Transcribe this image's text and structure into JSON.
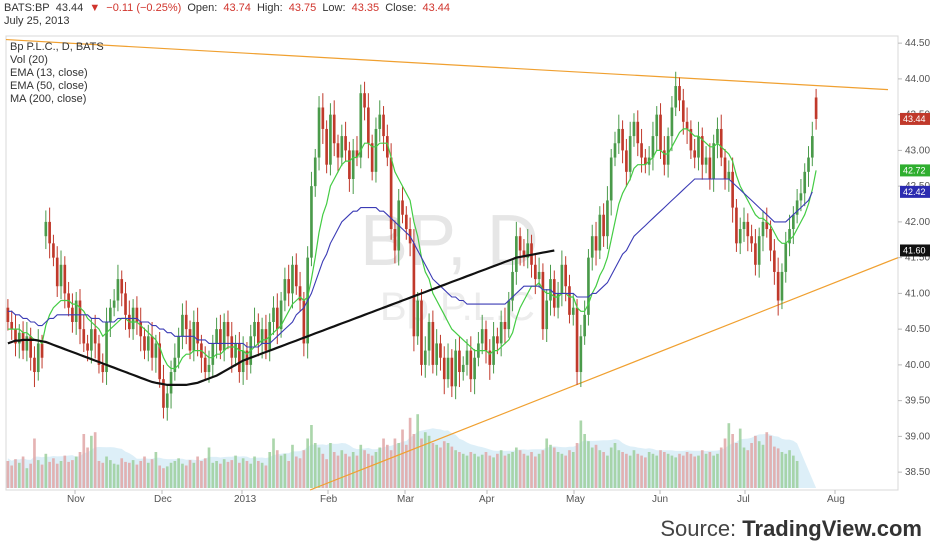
{
  "header": {
    "symbol": "BATS:BP",
    "last": "43.44",
    "arrow": "▼",
    "change": "−0.11 (−0.25%)",
    "open_label": "Open:",
    "open": "43.74",
    "high_label": "High:",
    "high": "43.75",
    "low_label": "Low:",
    "low": "43.35",
    "close_label": "Close:",
    "close": "43.44",
    "date": "July 25, 2013"
  },
  "source": {
    "prefix": "Source: ",
    "brand": "TradingView.com"
  },
  "colors": {
    "up": "#4a9a4a",
    "down": "#c0392b",
    "ema13": "#44cc44",
    "ema50": "#3b3bb5",
    "ma200": "#111111",
    "trend": "#f0a030",
    "vol_up": "#9ccf9c",
    "vol_down": "#e0a6a6",
    "vol_area": "#cfe8f5"
  },
  "chart_data": {
    "type": "candlestick",
    "title": "Bp P.L.C., D, BATS",
    "legend": [
      "Bp P.L.C., D, BATS",
      "Vol (20)",
      "EMA (13, close)",
      "EMA (50, close)",
      "MA (200, close)"
    ],
    "watermark": "BP, D",
    "watermark_sub": "Bp P.L.C",
    "ylim": [
      38.25,
      44.6
    ],
    "y_ticks": [
      "44.50",
      "44.00",
      "43.50",
      "43.00",
      "42.50",
      "42.00",
      "41.50",
      "41.00",
      "40.50",
      "40.00",
      "39.50",
      "39.00",
      "38.50"
    ],
    "x_ticks": [
      "Nov",
      "Dec",
      "2013",
      "Feb",
      "Mar",
      "Apr",
      "May",
      "Jun",
      "Jul",
      "Aug"
    ],
    "badges": [
      {
        "label": "43.44",
        "value": 43.44,
        "color": "#c0392b"
      },
      {
        "label": "42.72",
        "value": 42.72,
        "color": "#2fae2f"
      },
      {
        "label": "42.42",
        "value": 42.42,
        "color": "#2b2bb0"
      },
      {
        "label": "41.60",
        "value": 41.6,
        "color": "#111111"
      }
    ],
    "closes": [
      40.6,
      40.5,
      40.3,
      40.45,
      40.2,
      40.4,
      40.1,
      39.9,
      40.3,
      40.1,
      42.0,
      41.7,
      41.5,
      41.1,
      41.4,
      41.0,
      40.8,
      40.6,
      40.9,
      40.5,
      40.3,
      40.2,
      40.5,
      40.3,
      40.0,
      39.9,
      40.6,
      40.8,
      40.9,
      41.2,
      41.0,
      40.7,
      40.5,
      40.8,
      40.6,
      40.4,
      40.2,
      40.4,
      40.1,
      40.3,
      39.8,
      39.4,
      39.6,
      39.9,
      40.1,
      40.4,
      40.7,
      40.5,
      40.2,
      40.6,
      40.3,
      40.1,
      39.9,
      40.0,
      40.3,
      40.5,
      40.2,
      40.6,
      40.4,
      40.1,
      40.3,
      39.9,
      40.2,
      40.0,
      40.4,
      40.6,
      40.3,
      40.5,
      40.2,
      40.6,
      40.8,
      40.5,
      40.9,
      41.2,
      41.0,
      41.4,
      41.1,
      40.9,
      40.3,
      41.5,
      42.5,
      42.9,
      43.6,
      43.3,
      42.8,
      43.5,
      43.1,
      42.9,
      43.2,
      43.0,
      42.6,
      43.0,
      42.9,
      43.8,
      43.6,
      43.1,
      42.7,
      43.3,
      43.5,
      43.2,
      42.9,
      41.9,
      41.6,
      42.3,
      42.1,
      41.9,
      41.7,
      40.4,
      40.9,
      40.0,
      40.2,
      40.6,
      40.0,
      40.3,
      40.1,
      39.8,
      40.1,
      39.7,
      40.2,
      39.9,
      40.0,
      40.2,
      39.8,
      40.1,
      40.3,
      40.5,
      40.2,
      40.0,
      40.4,
      40.3,
      40.6,
      40.5,
      40.9,
      41.3,
      41.8,
      41.6,
      41.5,
      41.7,
      41.4,
      41.2,
      41.3,
      40.5,
      40.9,
      41.2,
      40.8,
      41.0,
      41.4,
      41.1,
      40.7,
      40.8,
      39.9,
      40.4,
      40.7,
      41.5,
      41.8,
      41.6,
      42.1,
      41.8,
      42.3,
      42.9,
      43.1,
      43.3,
      43.0,
      42.7,
      43.2,
      43.4,
      43.1,
      42.9,
      42.8,
      42.9,
      43.2,
      43.5,
      43.0,
      42.8,
      43.2,
      43.6,
      43.9,
      43.7,
      43.4,
      43.3,
      43.0,
      42.9,
      43.2,
      42.8,
      42.9,
      42.6,
      43.1,
      43.3,
      42.9,
      42.6,
      42.7,
      42.2,
      41.7,
      41.9,
      42.0,
      41.8,
      41.7,
      41.4,
      41.8,
      42.0,
      41.9,
      41.6,
      41.3,
      40.9,
      41.3,
      41.7,
      41.9,
      42.1,
      42.3,
      42.4,
      42.7,
      42.9,
      43.2,
      43.44
    ],
    "opens": [
      40.8,
      40.6,
      40.5,
      40.3,
      40.45,
      40.2,
      40.4,
      40.1,
      39.9,
      40.3,
      41.8,
      42.0,
      41.7,
      41.5,
      41.1,
      41.4,
      41.0,
      40.8,
      40.6,
      40.9,
      40.5,
      40.3,
      40.2,
      40.5,
      40.3,
      40.0,
      39.9,
      40.6,
      40.8,
      40.9,
      41.2,
      41.0,
      40.7,
      40.5,
      40.8,
      40.6,
      40.4,
      40.2,
      40.4,
      40.1,
      40.3,
      39.8,
      39.4,
      39.6,
      39.9,
      40.1,
      40.4,
      40.7,
      40.5,
      40.2,
      40.6,
      40.3,
      40.1,
      39.9,
      40.0,
      40.3,
      40.5,
      40.2,
      40.6,
      40.4,
      40.1,
      40.3,
      39.9,
      40.2,
      40.0,
      40.4,
      40.6,
      40.3,
      40.5,
      40.2,
      40.6,
      40.8,
      40.5,
      40.9,
      41.2,
      41.0,
      41.4,
      41.1,
      40.9,
      40.3,
      41.5,
      42.5,
      42.9,
      43.6,
      43.3,
      42.8,
      43.5,
      43.1,
      42.9,
      43.2,
      43.0,
      42.6,
      43.0,
      42.9,
      43.8,
      43.6,
      43.1,
      42.7,
      43.3,
      43.5,
      43.2,
      42.9,
      41.9,
      41.6,
      42.3,
      42.1,
      41.9,
      41.7,
      40.4,
      40.9,
      40.0,
      40.2,
      40.6,
      40.0,
      40.3,
      40.1,
      39.8,
      40.1,
      39.7,
      40.2,
      39.9,
      40.0,
      40.2,
      39.8,
      40.1,
      40.3,
      40.5,
      40.2,
      40.0,
      40.4,
      40.3,
      40.6,
      40.5,
      40.9,
      41.3,
      41.8,
      41.6,
      41.5,
      41.7,
      41.4,
      41.2,
      41.3,
      40.5,
      40.9,
      41.2,
      40.8,
      41.0,
      41.4,
      41.1,
      40.7,
      40.8,
      39.9,
      40.4,
      40.7,
      41.5,
      41.8,
      41.6,
      42.1,
      41.8,
      42.3,
      42.9,
      43.1,
      43.3,
      43.0,
      42.7,
      43.2,
      43.4,
      43.1,
      42.9,
      42.8,
      42.9,
      43.2,
      43.5,
      43.0,
      42.8,
      43.2,
      43.6,
      43.9,
      43.7,
      43.4,
      43.3,
      43.0,
      42.9,
      43.2,
      42.8,
      42.9,
      42.6,
      43.1,
      43.3,
      42.9,
      42.6,
      42.7,
      42.2,
      41.7,
      41.9,
      42.0,
      41.8,
      41.7,
      41.4,
      41.8,
      42.0,
      41.9,
      41.6,
      41.3,
      40.9,
      41.3,
      41.7,
      41.9,
      42.1,
      42.3,
      42.4,
      42.7,
      42.9,
      43.74
    ],
    "ema13": [
      40.5,
      40.5,
      40.5,
      40.5,
      40.45,
      40.45,
      40.4,
      40.35,
      40.35,
      40.3,
      40.55,
      40.7,
      40.8,
      40.85,
      40.9,
      40.9,
      40.9,
      40.85,
      40.85,
      40.8,
      40.75,
      40.65,
      40.6,
      40.55,
      40.5,
      40.4,
      40.45,
      40.5,
      40.55,
      40.6,
      40.65,
      40.65,
      40.6,
      40.6,
      40.6,
      40.55,
      40.5,
      40.45,
      40.4,
      40.35,
      40.25,
      40.1,
      40.0,
      39.95,
      39.95,
      40.0,
      40.1,
      40.15,
      40.15,
      40.2,
      40.2,
      40.2,
      40.15,
      40.1,
      40.1,
      40.15,
      40.15,
      40.2,
      40.25,
      40.25,
      40.25,
      40.2,
      40.2,
      40.15,
      40.2,
      40.25,
      40.3,
      40.35,
      40.35,
      40.4,
      40.45,
      40.5,
      40.55,
      40.65,
      40.75,
      40.85,
      40.9,
      40.95,
      40.9,
      40.95,
      41.2,
      41.5,
      41.85,
      42.1,
      42.25,
      42.5,
      42.6,
      42.7,
      42.8,
      42.85,
      42.85,
      42.9,
      42.9,
      43.0,
      43.1,
      43.1,
      43.05,
      43.05,
      43.1,
      43.1,
      43.1,
      42.9,
      42.7,
      42.6,
      42.5,
      42.4,
      42.3,
      42.0,
      41.8,
      41.5,
      41.3,
      41.2,
      41.0,
      40.9,
      40.8,
      40.7,
      40.6,
      40.5,
      40.45,
      40.4,
      40.35,
      40.3,
      40.25,
      40.2,
      40.2,
      40.2,
      40.2,
      40.15,
      40.2,
      40.2,
      40.25,
      40.3,
      40.35,
      40.45,
      40.65,
      40.8,
      40.9,
      41.0,
      41.1,
      41.1,
      41.15,
      41.05,
      41.0,
      41.0,
      40.95,
      40.95,
      41.0,
      41.0,
      40.95,
      40.95,
      40.8,
      40.75,
      40.75,
      40.85,
      41.0,
      41.1,
      41.25,
      41.35,
      41.5,
      41.75,
      42.0,
      42.25,
      42.4,
      42.5,
      42.6,
      42.75,
      42.8,
      42.8,
      42.8,
      42.85,
      42.9,
      43.0,
      43.0,
      42.95,
      42.95,
      43.05,
      43.15,
      43.25,
      43.3,
      43.3,
      43.25,
      43.2,
      43.2,
      43.15,
      43.1,
      43.05,
      43.05,
      43.1,
      43.05,
      43.0,
      42.95,
      42.85,
      42.65,
      42.5,
      42.4,
      42.3,
      42.2,
      42.1,
      42.05,
      42.05,
      42.0,
      41.95,
      41.85,
      41.75,
      41.7,
      41.7,
      41.75,
      41.8,
      41.9,
      42.0,
      42.1,
      42.25,
      42.45,
      42.72
    ],
    "ema50": [
      40.75,
      40.75,
      40.7,
      40.7,
      40.65,
      40.65,
      40.6,
      40.6,
      40.55,
      40.55,
      40.6,
      40.65,
      40.65,
      40.7,
      40.7,
      40.7,
      40.7,
      40.7,
      40.7,
      40.7,
      40.7,
      40.7,
      40.65,
      40.65,
      40.65,
      40.6,
      40.6,
      40.6,
      40.6,
      40.65,
      40.65,
      40.65,
      40.65,
      40.65,
      40.65,
      40.6,
      40.6,
      40.6,
      40.55,
      40.55,
      40.5,
      40.5,
      40.45,
      40.45,
      40.4,
      40.4,
      40.4,
      40.4,
      40.4,
      40.4,
      40.35,
      40.35,
      40.35,
      40.3,
      40.3,
      40.3,
      40.3,
      40.3,
      40.3,
      40.3,
      40.3,
      40.3,
      40.3,
      40.25,
      40.25,
      40.25,
      40.25,
      40.3,
      40.3,
      40.3,
      40.35,
      40.4,
      40.45,
      40.5,
      40.55,
      40.6,
      40.7,
      40.75,
      40.8,
      40.9,
      41.0,
      41.15,
      41.3,
      41.45,
      41.55,
      41.7,
      41.8,
      41.9,
      42.0,
      42.05,
      42.1,
      42.15,
      42.15,
      42.2,
      42.2,
      42.2,
      42.2,
      42.2,
      42.15,
      42.15,
      42.1,
      42.05,
      42.0,
      41.95,
      41.9,
      41.85,
      41.8,
      41.7,
      41.6,
      41.5,
      41.4,
      41.3,
      41.2,
      41.15,
      41.1,
      41.05,
      41.0,
      40.95,
      40.95,
      40.9,
      40.9,
      40.85,
      40.85,
      40.85,
      40.85,
      40.85,
      40.85,
      40.85,
      40.85,
      40.85,
      40.85,
      40.85,
      40.9,
      40.95,
      41.0,
      41.05,
      41.1,
      41.1,
      41.1,
      41.1,
      41.1,
      41.05,
      41.05,
      41.05,
      41.0,
      41.0,
      41.0,
      41.0,
      41.0,
      41.0,
      40.95,
      40.95,
      40.95,
      40.95,
      41.0,
      41.0,
      41.05,
      41.1,
      41.15,
      41.25,
      41.35,
      41.45,
      41.55,
      41.6,
      41.7,
      41.8,
      41.85,
      41.9,
      41.95,
      42.0,
      42.05,
      42.1,
      42.15,
      42.2,
      42.25,
      42.3,
      42.35,
      42.4,
      42.45,
      42.5,
      42.55,
      42.6,
      42.6,
      42.6,
      42.6,
      42.6,
      42.6,
      42.6,
      42.6,
      42.6,
      42.6,
      42.55,
      42.5,
      42.45,
      42.4,
      42.35,
      42.3,
      42.25,
      42.2,
      42.15,
      42.1,
      42.05,
      42.0,
      42.0,
      42.0,
      42.0,
      42.05,
      42.1,
      42.15,
      42.2,
      42.25,
      42.3,
      42.42
    ],
    "ma200": [
      40.3,
      40.32,
      40.34,
      40.34,
      40.35,
      40.35,
      40.35,
      40.35,
      40.34,
      40.33,
      40.32,
      40.3,
      40.28,
      40.26,
      40.24,
      40.22,
      40.2,
      40.18,
      40.16,
      40.14,
      40.12,
      40.1,
      40.08,
      40.06,
      40.04,
      40.02,
      40.0,
      39.98,
      39.96,
      39.94,
      39.92,
      39.9,
      39.88,
      39.86,
      39.84,
      39.82,
      39.8,
      39.78,
      39.76,
      39.75,
      39.74,
      39.73,
      39.72,
      39.72,
      39.72,
      39.72,
      39.72,
      39.72,
      39.73,
      39.74,
      39.75,
      39.77,
      39.79,
      39.81,
      39.83,
      39.85,
      39.88,
      39.91,
      39.94,
      39.97,
      40.0,
      40.03,
      40.06,
      40.08,
      40.1,
      40.12,
      40.14,
      40.16,
      40.18,
      40.2,
      40.22,
      40.24,
      40.26,
      40.28,
      40.3,
      40.32,
      40.34,
      40.36,
      40.38,
      40.4,
      40.42,
      40.44,
      40.46,
      40.48,
      40.5,
      40.52,
      40.54,
      40.56,
      40.58,
      40.6,
      40.62,
      40.64,
      40.66,
      40.68,
      40.7,
      40.72,
      40.74,
      40.76,
      40.78,
      40.8,
      40.82,
      40.84,
      40.86,
      40.88,
      40.9,
      40.92,
      40.94,
      40.96,
      40.98,
      41.0,
      41.02,
      41.04,
      41.06,
      41.08,
      41.1,
      41.12,
      41.14,
      41.16,
      41.18,
      41.2,
      41.22,
      41.24,
      41.26,
      41.28,
      41.3,
      41.32,
      41.34,
      41.36,
      41.38,
      41.4,
      41.42,
      41.44,
      41.46,
      41.48,
      41.5,
      41.51,
      41.52,
      41.53,
      41.54,
      41.55,
      41.56,
      41.57,
      41.58,
      41.59,
      41.6
    ],
    "volume": [
      0.3,
      0.25,
      0.32,
      0.28,
      0.35,
      0.22,
      0.27,
      0.55,
      0.31,
      0.26,
      0.38,
      0.29,
      0.33,
      0.27,
      0.3,
      0.36,
      0.29,
      0.31,
      0.35,
      0.4,
      0.6,
      0.45,
      0.58,
      0.62,
      0.3,
      0.28,
      0.35,
      0.31,
      0.27,
      0.26,
      0.33,
      0.29,
      0.28,
      0.31,
      0.26,
      0.3,
      0.35,
      0.28,
      0.32,
      0.4,
      0.25,
      0.22,
      0.24,
      0.28,
      0.3,
      0.33,
      0.27,
      0.25,
      0.31,
      0.28,
      0.35,
      0.3,
      0.33,
      0.45,
      0.28,
      0.3,
      0.27,
      0.32,
      0.29,
      0.31,
      0.36,
      0.28,
      0.33,
      0.3,
      0.27,
      0.35,
      0.3,
      0.28,
      0.25,
      0.4,
      0.55,
      0.42,
      0.36,
      0.38,
      0.3,
      0.48,
      0.35,
      0.33,
      0.42,
      0.55,
      0.7,
      0.5,
      0.45,
      0.38,
      0.32,
      0.5,
      0.4,
      0.36,
      0.42,
      0.38,
      0.35,
      0.4,
      0.36,
      0.48,
      0.42,
      0.38,
      0.36,
      0.4,
      0.45,
      0.55,
      0.48,
      0.42,
      0.55,
      0.5,
      0.65,
      0.48,
      0.78,
      0.6,
      0.82,
      0.55,
      0.62,
      0.58,
      0.5,
      0.48,
      0.45,
      0.52,
      0.5,
      0.46,
      0.42,
      0.4,
      0.38,
      0.36,
      0.4,
      0.38,
      0.35,
      0.37,
      0.4,
      0.36,
      0.34,
      0.38,
      0.42,
      0.36,
      0.38,
      0.4,
      0.45,
      0.42,
      0.38,
      0.36,
      0.4,
      0.35,
      0.38,
      0.42,
      0.55,
      0.48,
      0.45,
      0.4,
      0.38,
      0.36,
      0.42,
      0.4,
      0.5,
      0.75,
      0.6,
      0.52,
      0.45,
      0.48,
      0.42,
      0.4,
      0.36,
      0.45,
      0.5,
      0.42,
      0.4,
      0.38,
      0.36,
      0.42,
      0.38,
      0.36,
      0.34,
      0.4,
      0.38,
      0.36,
      0.42,
      0.4,
      0.38,
      0.36,
      0.34,
      0.38,
      0.36,
      0.4,
      0.38,
      0.35,
      0.36,
      0.42,
      0.38,
      0.4,
      0.36,
      0.38,
      0.45,
      0.55,
      0.72,
      0.6,
      0.5,
      0.66,
      0.45,
      0.42,
      0.5,
      0.58,
      0.52,
      0.48,
      0.62,
      0.58,
      0.46,
      0.44,
      0.4,
      0.38,
      0.42,
      0.36,
      0.3
    ]
  }
}
